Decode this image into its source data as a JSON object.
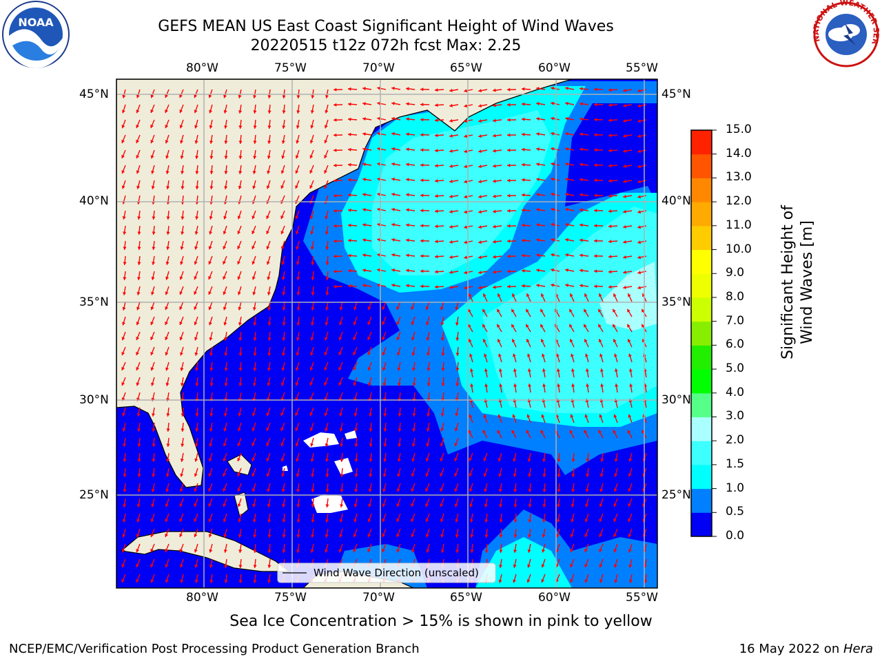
{
  "header": {
    "title_line1": "GEFS MEAN US East Coast Significant Height of Wind Waves",
    "title_line2": "20220515 t12z 072h fcst   Max: 2.25"
  },
  "logos": {
    "noaa_text": "NOAA",
    "nws_text": "NATIONAL WEATHER SERVICE"
  },
  "map": {
    "lon_ticks": [
      "80°W",
      "75°W",
      "70°W",
      "65°W",
      "60°W",
      "55°W"
    ],
    "lat_ticks": [
      "45°N",
      "40°N",
      "35°N",
      "30°N",
      "25°N"
    ],
    "legend_label": "Wind Wave Direction (unscaled)",
    "colors": {
      "land": "#efedda",
      "deep": "#0000f5",
      "mid": "#0080ff",
      "cyan": "#00ffff",
      "lightcyan": "#3dffff",
      "palecyan": "#aaffff",
      "arrow": "#ff0000",
      "grid": "#b0b0b0"
    }
  },
  "colorbar": {
    "label": "Significant Height of Wind Waves [m]",
    "ticks": [
      "0.0",
      "0.5",
      "1.0",
      "1.5",
      "2.0",
      "3.0",
      "4.0",
      "5.0",
      "6.0",
      "7.0",
      "8.0",
      "9.0",
      "10.0",
      "11.0",
      "12.0",
      "13.0",
      "14.0",
      "15.0"
    ],
    "colors": [
      "#0000f5",
      "#0080ff",
      "#00ffff",
      "#3dffff",
      "#aaffff",
      "#55ff88",
      "#00ff00",
      "#22ee00",
      "#88ee00",
      "#ccff00",
      "#eeff00",
      "#ffff00",
      "#ffcc00",
      "#ffaa00",
      "#ff8800",
      "#ff5500",
      "#ff2200"
    ]
  },
  "note": "Sea Ice Concentration > 15% is shown in pink to yellow",
  "footer": {
    "left": "NCEP/EMC/Verification Post Processing Product Generation Branch",
    "right_date": "16 May 2022 on ",
    "right_host": "Hera"
  }
}
